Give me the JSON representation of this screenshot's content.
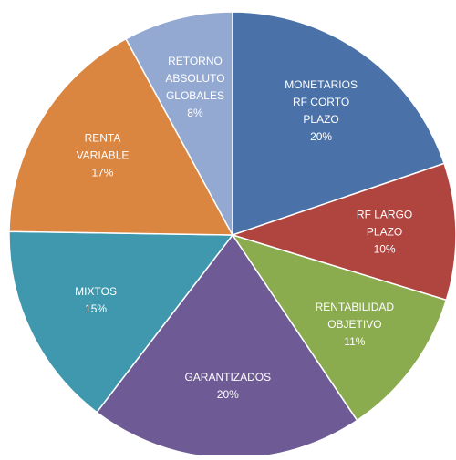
{
  "chart_data": {
    "type": "pie",
    "categories": [
      [
        "MONETARIOS",
        "RF CORTO",
        "PLAZO"
      ],
      [
        "RF LARGO",
        "PLAZO"
      ],
      [
        "RENTABILIDAD",
        "OBJETIVO"
      ],
      [
        "GARANTIZADOS"
      ],
      [
        "MIXTOS"
      ],
      [
        "RENTA",
        "VARIABLE"
      ],
      [
        "RETORNO",
        "ABSOLUTO",
        "GLOBALES"
      ]
    ],
    "values": [
      20,
      10,
      11,
      20,
      15,
      17,
      8
    ],
    "value_labels": [
      "20%",
      "10%",
      "11%",
      "20%",
      "15%",
      "17%",
      "8%"
    ],
    "colors": [
      "#4a72a8",
      "#b04540",
      "#8aab4e",
      "#6e5a94",
      "#3f98ae",
      "#da8540",
      "#94a9d2"
    ]
  }
}
